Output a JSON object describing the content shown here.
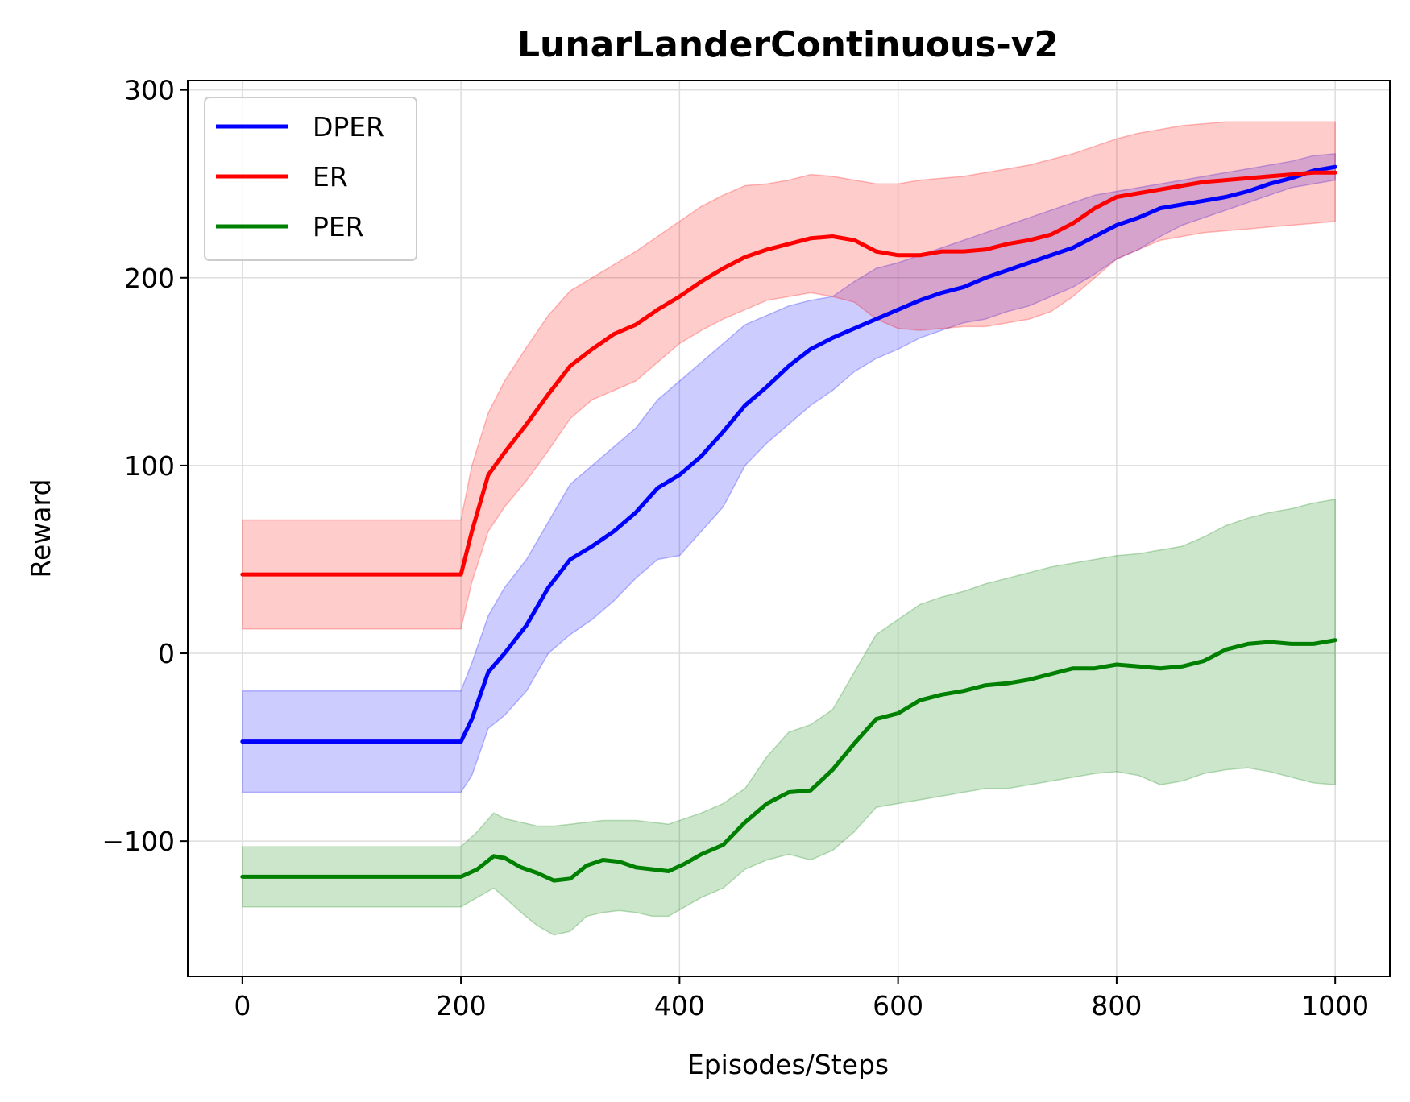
{
  "chart_data": {
    "type": "line",
    "title": "LunarLanderContinuous-v2",
    "xlabel": "Episodes/Steps",
    "ylabel": "Reward",
    "xlim": [
      -50,
      1050
    ],
    "ylim": [
      -172,
      305
    ],
    "xticks": [
      0,
      200,
      400,
      600,
      800,
      1000
    ],
    "yticks": [
      -100,
      0,
      100,
      200,
      300
    ],
    "xtick_labels": [
      "0",
      "200",
      "400",
      "600",
      "800",
      "1000"
    ],
    "ytick_labels": [
      "−100",
      "0",
      "100",
      "200",
      "300"
    ],
    "grid": true,
    "legend_position": "upper-left",
    "series": [
      {
        "name": "DPER",
        "color": "#0000ff",
        "x": [
          0,
          200,
          210,
          225,
          240,
          260,
          280,
          300,
          320,
          340,
          360,
          380,
          400,
          420,
          440,
          460,
          480,
          500,
          520,
          540,
          560,
          580,
          600,
          620,
          640,
          660,
          680,
          700,
          720,
          740,
          760,
          780,
          800,
          820,
          840,
          860,
          880,
          900,
          920,
          940,
          960,
          980,
          1000
        ],
        "mean": [
          -47,
          -47,
          -35,
          -10,
          0,
          15,
          35,
          50,
          57,
          65,
          75,
          88,
          95,
          105,
          118,
          132,
          142,
          153,
          162,
          168,
          173,
          178,
          183,
          188,
          192,
          195,
          200,
          204,
          208,
          212,
          216,
          222,
          228,
          232,
          237,
          239,
          241,
          243,
          246,
          250,
          253,
          257,
          259
        ],
        "upper": [
          -20,
          -20,
          -5,
          20,
          35,
          50,
          70,
          90,
          100,
          110,
          120,
          135,
          145,
          155,
          165,
          175,
          180,
          185,
          188,
          190,
          198,
          205,
          208,
          212,
          216,
          220,
          224,
          228,
          232,
          236,
          240,
          244,
          246,
          248,
          250,
          252,
          254,
          256,
          258,
          260,
          262,
          265,
          266
        ],
        "lower": [
          -74,
          -74,
          -65,
          -40,
          -33,
          -20,
          0,
          10,
          18,
          28,
          40,
          50,
          52,
          65,
          78,
          100,
          112,
          122,
          132,
          140,
          150,
          157,
          162,
          168,
          172,
          176,
          178,
          182,
          185,
          190,
          195,
          202,
          210,
          215,
          222,
          228,
          232,
          236,
          240,
          244,
          248,
          250,
          252
        ]
      },
      {
        "name": "ER",
        "color": "#ff0000",
        "x": [
          0,
          200,
          210,
          225,
          240,
          260,
          280,
          300,
          320,
          340,
          360,
          380,
          400,
          420,
          440,
          460,
          480,
          500,
          520,
          540,
          560,
          580,
          600,
          620,
          640,
          660,
          680,
          700,
          720,
          740,
          760,
          780,
          800,
          820,
          840,
          860,
          880,
          900,
          920,
          940,
          960,
          980,
          1000
        ],
        "mean": [
          42,
          42,
          65,
          95,
          107,
          122,
          138,
          153,
          162,
          170,
          175,
          183,
          190,
          198,
          205,
          211,
          215,
          218,
          221,
          222,
          220,
          214,
          212,
          212,
          214,
          214,
          215,
          218,
          220,
          223,
          229,
          237,
          243,
          245,
          247,
          249,
          251,
          252,
          253,
          254,
          255,
          256,
          256
        ],
        "upper": [
          71,
          71,
          100,
          128,
          145,
          163,
          180,
          193,
          200,
          207,
          214,
          222,
          230,
          238,
          244,
          249,
          250,
          252,
          255,
          254,
          252,
          250,
          250,
          252,
          253,
          254,
          256,
          258,
          260,
          263,
          266,
          270,
          274,
          277,
          279,
          281,
          282,
          283,
          283,
          283,
          283,
          283,
          283
        ],
        "lower": [
          13,
          13,
          38,
          65,
          78,
          92,
          108,
          125,
          135,
          140,
          145,
          155,
          165,
          172,
          178,
          183,
          188,
          190,
          192,
          190,
          187,
          178,
          173,
          172,
          173,
          174,
          174,
          176,
          178,
          182,
          190,
          200,
          210,
          215,
          220,
          222,
          224,
          225,
          226,
          227,
          228,
          229,
          230
        ]
      },
      {
        "name": "PER",
        "color": "#008000",
        "x": [
          0,
          200,
          215,
          230,
          240,
          255,
          270,
          285,
          300,
          315,
          330,
          345,
          360,
          375,
          390,
          405,
          420,
          440,
          460,
          480,
          500,
          520,
          540,
          560,
          580,
          600,
          620,
          640,
          660,
          680,
          700,
          720,
          740,
          760,
          780,
          800,
          820,
          840,
          860,
          880,
          900,
          920,
          940,
          960,
          980,
          1000
        ],
        "mean": [
          -119,
          -119,
          -115,
          -108,
          -109,
          -114,
          -117,
          -121,
          -120,
          -113,
          -110,
          -111,
          -114,
          -115,
          -116,
          -112,
          -107,
          -102,
          -90,
          -80,
          -74,
          -73,
          -62,
          -48,
          -35,
          -32,
          -25,
          -22,
          -20,
          -17,
          -16,
          -14,
          -11,
          -8,
          -8,
          -6,
          -7,
          -8,
          -7,
          -4,
          2,
          5,
          6,
          5,
          5,
          7
        ],
        "upper": [
          -103,
          -103,
          -95,
          -85,
          -88,
          -90,
          -92,
          -92,
          -91,
          -90,
          -89,
          -89,
          -89,
          -90,
          -91,
          -88,
          -85,
          -80,
          -72,
          -55,
          -42,
          -38,
          -30,
          -10,
          10,
          18,
          26,
          30,
          33,
          37,
          40,
          43,
          46,
          48,
          50,
          52,
          53,
          55,
          57,
          62,
          68,
          72,
          75,
          77,
          80,
          82
        ],
        "lower": [
          -135,
          -135,
          -130,
          -125,
          -130,
          -138,
          -145,
          -150,
          -148,
          -140,
          -138,
          -137,
          -138,
          -140,
          -140,
          -135,
          -130,
          -125,
          -115,
          -110,
          -107,
          -110,
          -105,
          -95,
          -82,
          -80,
          -78,
          -76,
          -74,
          -72,
          -72,
          -70,
          -68,
          -66,
          -64,
          -63,
          -65,
          -70,
          -68,
          -64,
          -62,
          -61,
          -63,
          -66,
          -69,
          -70
        ]
      }
    ]
  }
}
